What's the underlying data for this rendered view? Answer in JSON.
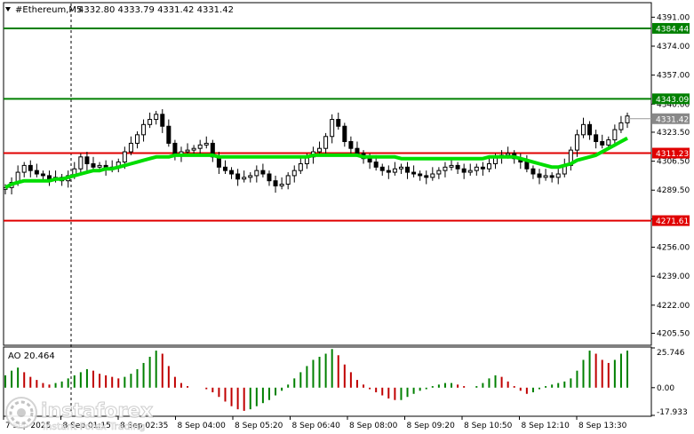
{
  "header": {
    "menu_icon": "triangle-down-icon",
    "symbol": "#Ethereum,M5",
    "ohlc": "4332.80 4333.79 4331.42 4331.42"
  },
  "chart_data": [
    {
      "type": "candlestick",
      "title": "#Ethereum,M5",
      "ylim": [
        4199,
        4399
      ],
      "y_ticks": [
        "4391.00",
        "4374.00",
        "4357.00",
        "4340.00",
        "4323.50",
        "4306.50",
        "4289.50",
        "4272.50",
        "4256.00",
        "4239.00",
        "4222.00",
        "4205.50"
      ],
      "x_ticks": [
        "7 Sep 2025",
        "8 Sep 01:15",
        "8 Sep 02:35",
        "8 Sep 04:00",
        "8 Sep 05:20",
        "8 Sep 06:40",
        "8 Sep 08:00",
        "8 Sep 09:20",
        "8 Sep 10:50",
        "8 Sep 12:10",
        "8 Sep 13:30"
      ],
      "price_series": [
        4291,
        4294,
        4300,
        4304,
        4301,
        4299,
        4298,
        4296,
        4297,
        4295,
        4298,
        4302,
        4309,
        4305,
        4303,
        4304,
        4302,
        4303,
        4306,
        4312,
        4317,
        4322,
        4328,
        4331,
        4334,
        4327,
        4317,
        4310,
        4312,
        4313,
        4314,
        4316,
        4317,
        4309,
        4303,
        4301,
        4299,
        4296,
        4297,
        4298,
        4301,
        4299,
        4295,
        4292,
        4293,
        4298,
        4301,
        4305,
        4309,
        4312,
        4314,
        4321,
        4331,
        4327,
        4318,
        4314,
        4311,
        4308,
        4306,
        4303,
        4301,
        4300,
        4302,
        4303,
        4300,
        4299,
        4298,
        4297,
        4299,
        4301,
        4303,
        4304,
        4302,
        4300,
        4301,
        4303,
        4302,
        4305,
        4309,
        4310,
        4311,
        4308,
        4306,
        4302,
        4299,
        4297,
        4298,
        4297,
        4299,
        4304,
        4313,
        4322,
        4328,
        4322,
        4318,
        4316,
        4319,
        4325,
        4329,
        4333
      ],
      "ma_series": [
        4291,
        4293,
        4294,
        4295,
        4295,
        4295,
        4295,
        4295,
        4296,
        4296,
        4297,
        4298,
        4299,
        4300,
        4301,
        4301,
        4302,
        4302,
        4303,
        4304,
        4305,
        4306,
        4307,
        4308,
        4309,
        4309,
        4309,
        4310,
        4310,
        4310,
        4310,
        4310,
        4310,
        4310,
        4309,
        4309,
        4309,
        4309,
        4309,
        4309,
        4309,
        4309,
        4309,
        4309,
        4309,
        4309,
        4309,
        4309,
        4309,
        4310,
        4310,
        4310,
        4310,
        4310,
        4310,
        4310,
        4310,
        4309,
        4309,
        4309,
        4309,
        4309,
        4309,
        4308,
        4308,
        4308,
        4308,
        4308,
        4308,
        4308,
        4308,
        4308,
        4308,
        4308,
        4308,
        4308,
        4308,
        4309,
        4309,
        4309,
        4309,
        4309,
        4308,
        4307,
        4306,
        4305,
        4304,
        4303,
        4303,
        4304,
        4305,
        4307,
        4308,
        4309,
        4310,
        4312,
        4314,
        4316,
        4318,
        4320
      ],
      "horizontal_levels": [
        {
          "label": "4384.44",
          "color": "#008000"
        },
        {
          "label": "4343.09",
          "color": "#008000"
        },
        {
          "label": "4311.23",
          "color": "#e00000"
        },
        {
          "label": "4271.61",
          "color": "#e00000"
        }
      ],
      "current_price": "4331.42",
      "colors": {
        "candle": "#000000",
        "ma": "#00dd00",
        "support": "#e00000",
        "target": "#008000",
        "price_box": "#888888"
      }
    },
    {
      "type": "bar",
      "title": "AO 20.464",
      "ylim": [
        -17.933,
        25.746
      ],
      "y_ticks": [
        "25.746",
        "0.00",
        "-17.933"
      ],
      "values": [
        8,
        11,
        13,
        10,
        7,
        5,
        3,
        2,
        3,
        4,
        6,
        8,
        10,
        12,
        11,
        9,
        8,
        7,
        6,
        7,
        9,
        12,
        16,
        20,
        24,
        22,
        14,
        7,
        3,
        1,
        0,
        0,
        -1,
        -3,
        -6,
        -9,
        -12,
        -14,
        -15,
        -14,
        -12,
        -10,
        -8,
        -5,
        -2,
        2,
        6,
        10,
        14,
        18,
        20,
        22,
        25,
        21,
        15,
        10,
        5,
        2,
        -1,
        -3,
        -5,
        -7,
        -8,
        -8,
        -6,
        -4,
        -2,
        -1,
        1,
        2,
        3,
        3,
        2,
        1,
        0,
        1,
        3,
        6,
        8,
        7,
        4,
        1,
        -2,
        -4,
        -3,
        -1,
        1,
        2,
        3,
        4,
        6,
        11,
        18,
        24,
        22,
        18,
        16,
        18,
        22,
        24
      ],
      "colors": {
        "up": "#008000",
        "down": "#c00000"
      }
    }
  ],
  "watermark": {
    "brand": "instaforex",
    "tagline": "Instant Forex Trading"
  }
}
